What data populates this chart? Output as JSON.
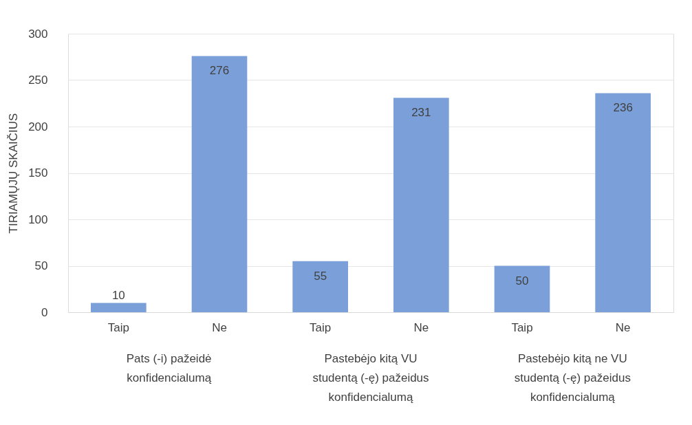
{
  "chart_data": {
    "type": "bar",
    "ylabel": "TIRIAMŲJŲ SKAIČIUS",
    "categories": [
      "Taip",
      "Ne",
      "Taip",
      "Ne",
      "Taip",
      "Ne"
    ],
    "values": [
      10,
      276,
      55,
      231,
      50,
      236
    ],
    "color": "#7b9fd8",
    "ylim": [
      0,
      300
    ],
    "yticks": [
      0,
      50,
      100,
      150,
      200,
      250,
      300
    ],
    "grid": "y",
    "data_labels": true,
    "annotations": [
      "Pats (-i) pažeidė konfidencialumą",
      "Pastebėjo kitą VU studentą (-ę) pažeidus konfidencialumą",
      "Pastebėjo kitą ne VU studentą (-ę) pažeidus konfidencialumą"
    ]
  }
}
